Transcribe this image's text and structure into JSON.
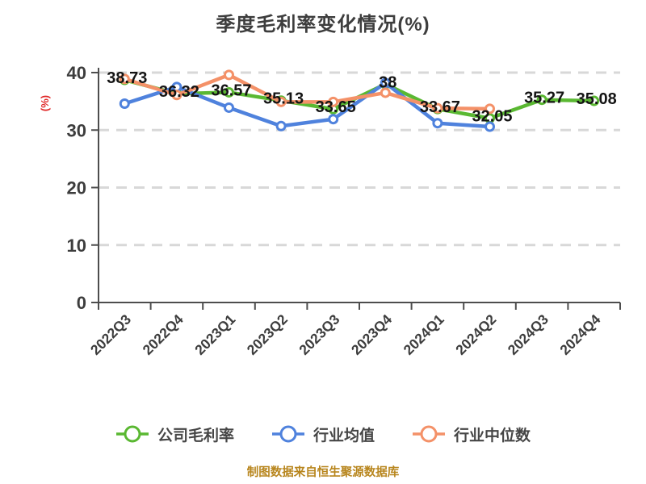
{
  "title": "季度毛利率变化情况(%)",
  "footer": {
    "text": "制图数据来自恒生聚源数据库"
  },
  "colors": {
    "company": "#5ab832",
    "industry_avg": "#4f82dd",
    "industry_median": "#f49168",
    "grid": "#d8d8d8",
    "axis": "#4d4d4d",
    "tick_label": "#3d3d3d",
    "data_label": "#141414",
    "title": "#3d3d3d",
    "footer": "#b8861e",
    "y_axis_name": "#e02828",
    "background": "#ffffff"
  },
  "chart_data": {
    "type": "line",
    "title": "季度毛利率变化情况(%)",
    "xlabel": "",
    "ylabel": "(%)",
    "ylim": [
      0,
      40
    ],
    "yticks": [
      0,
      10,
      20,
      30,
      40
    ],
    "grid": "horizontal-dashed",
    "legend_position": "bottom",
    "categories": [
      "2022Q3",
      "2022Q4",
      "2023Q1",
      "2023Q2",
      "2023Q3",
      "2023Q4",
      "2024Q1",
      "2024Q2",
      "2024Q3",
      "2024Q4"
    ],
    "series": [
      {
        "name": "公司毛利率",
        "color": "#5ab832",
        "show_labels": true,
        "values": [
          38.73,
          36.32,
          36.57,
          35.13,
          33.65,
          38,
          33.67,
          32.05,
          35.27,
          35.08
        ]
      },
      {
        "name": "行业均值",
        "color": "#4f82dd",
        "show_labels": false,
        "values": [
          34.6,
          37.5,
          33.9,
          30.7,
          31.9,
          38.2,
          31.2,
          30.6,
          null,
          null
        ]
      },
      {
        "name": "行业中位数",
        "color": "#f49168",
        "show_labels": false,
        "values": [
          38.9,
          36.1,
          39.6,
          34.9,
          34.9,
          36.5,
          33.8,
          33.7,
          null,
          null
        ]
      }
    ]
  }
}
